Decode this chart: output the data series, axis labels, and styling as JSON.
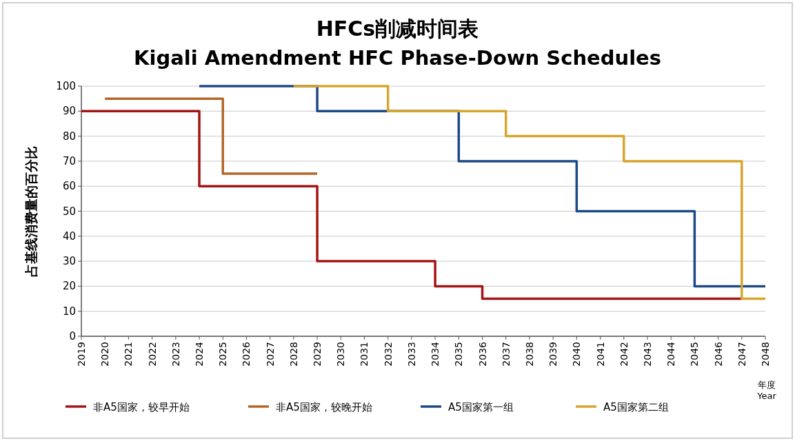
{
  "chart_data": {
    "type": "step",
    "title": "HFCs削减时间表",
    "subtitle": "Kigali Amendment HFC Phase-Down Schedules",
    "xlabel": "年度 Year",
    "ylabel": "占基线消费量的百分比",
    "xlim": [
      2019,
      2048
    ],
    "xticks": [
      2019,
      2020,
      2021,
      2022,
      2023,
      2024,
      2025,
      2026,
      2027,
      2028,
      2029,
      2030,
      2031,
      2032,
      2033,
      2034,
      2035,
      2036,
      2037,
      2038,
      2039,
      2040,
      2041,
      2042,
      2043,
      2044,
      2045,
      2046,
      2047,
      2048
    ],
    "ylim": [
      0,
      100
    ],
    "yticks": [
      0,
      10,
      20,
      30,
      40,
      50,
      60,
      70,
      80,
      90,
      100
    ],
    "grid": "y",
    "legend": "bottom",
    "series": [
      {
        "name": "非A5国家，较早开始",
        "color": "#a31515",
        "x": [
          2019,
          2024,
          2029,
          2034,
          2036,
          2047
        ],
        "values": [
          90,
          60,
          30,
          20,
          15,
          15
        ]
      },
      {
        "name": "非A5国家，较晚开始",
        "color": "#b3672b",
        "x": [
          2020,
          2025,
          2029
        ],
        "values": [
          95,
          65,
          65
        ]
      },
      {
        "name": "A5国家第一组",
        "color": "#1d4a86",
        "x": [
          2024,
          2029,
          2035,
          2040,
          2045,
          2048
        ],
        "values": [
          100,
          90,
          70,
          50,
          20,
          20
        ]
      },
      {
        "name": "A5国家第二组",
        "color": "#d6a62c",
        "x": [
          2028,
          2032,
          2037,
          2042,
          2047,
          2048
        ],
        "values": [
          100,
          90,
          80,
          70,
          15,
          15
        ]
      }
    ]
  }
}
